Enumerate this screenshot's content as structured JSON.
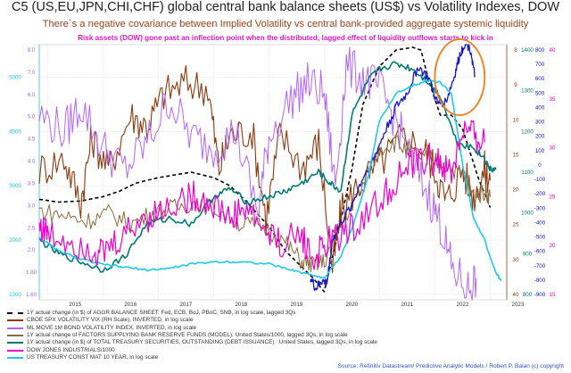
{
  "header": {
    "title": "C5 (US,EU,JPN,CHI,CHF) global central bank balance sheets (US$) vs Volatility Indexes, DOW",
    "subtitle": "There`s a negative  covariance between Implied Volatility vs central bank-provided aggregate systemic liquidity",
    "note": "Risk assets (DOW) gone past an inflection point when the distributed, lagged effect of liquidity outflows starts to kick in"
  },
  "footer": {
    "source": "Source: Refinitiv Datastream/ Predictive Analytic Models / Robert P. Balan (c) copyright"
  },
  "colors": {
    "balance_sheet": "#000000",
    "vix": "#8b3a0e",
    "move": "#b266ff",
    "reserve_factors": "#8b6a3e",
    "treasury": "#007b74",
    "dow": "#1414cc",
    "ust10": "#1ec8ee",
    "highlight_circle": "#f07d1a",
    "magenta": "#ee00cc"
  },
  "chart_data": {
    "type": "line",
    "title": "C5 (US,EU,JPN,CHI,CHF) global central bank balance sheets (US$) vs Volatility Indexes, DOW",
    "x_ticks": [
      "2015",
      "2016",
      "2017",
      "2018",
      "2019",
      "2020",
      "2021",
      "2022",
      "2023"
    ],
    "xlim": [
      2014.85,
      2023.3
    ],
    "axes": {
      "left_cyan": {
        "ticks": [
          "1000",
          "2000",
          "3000",
          "4000",
          "5000"
        ],
        "ylim": [
          900,
          5600
        ]
      },
      "left_violet": {
        "ticks": [
          "1.60",
          "1.80",
          "2.0",
          "2.5",
          "3.0",
          "3.5",
          "4.0",
          "4.5",
          "5.0",
          "6.0",
          "7.0",
          "8.0"
        ],
        "log": true
      },
      "right_brown": {
        "ticks": [
          "40",
          "30",
          "25",
          "20",
          "15",
          "10",
          "9",
          "8"
        ],
        "inverted": true,
        "log": true
      },
      "right_teal": {
        "ticks": [
          "800",
          "900",
          "1000",
          "1100",
          "1200",
          "1300",
          "1400"
        ]
      },
      "right_blue": {
        "ticks": [
          "-900",
          "-800",
          "-700",
          "-600",
          "-500",
          "-400",
          "-300",
          "-200",
          "-100",
          "0",
          "100",
          "200",
          "300",
          "400",
          "500",
          "600",
          "700",
          "800"
        ]
      },
      "right_magenta": {
        "ticks": [
          "15",
          "20",
          "25",
          "30",
          "35",
          "40"
        ]
      }
    },
    "series": [
      {
        "name": "1Y actual change (in $) of AGGR BALANCE SHEET: Fed, ECB, BoJ, PBoC, SNB,  in log scale, lagged 3Qs",
        "style": "dashed",
        "x": [
          2014.85,
          2015.2,
          2015.6,
          2016.0,
          2016.3,
          2016.6,
          2017.0,
          2017.3,
          2017.6,
          2018.0,
          2018.3,
          2018.6,
          2019.0,
          2019.3,
          2019.6,
          2019.8,
          2020.0,
          2020.2,
          2020.5,
          2020.7,
          2021.0,
          2021.3,
          2021.6,
          2021.75,
          2021.9,
          2022.1,
          2022.3,
          2022.5,
          2022.8,
          2023.0
        ],
        "y": [
          2750,
          2700,
          2720,
          2800,
          2900,
          3050,
          3150,
          3200,
          3250,
          3150,
          3000,
          2700,
          2250,
          1800,
          1500,
          1300,
          1050,
          1900,
          3300,
          4500,
          5200,
          5500,
          5550,
          5500,
          4900,
          4300,
          4300,
          4050,
          3100,
          2600
        ]
      },
      {
        "name": "CBOE SPX VOLATILITY VIX (RH Scale), INVERTED, in log scale",
        "x": [
          2014.85,
          2015.3,
          2015.6,
          2015.8,
          2016.1,
          2016.5,
          2016.8,
          2017.1,
          2017.5,
          2017.9,
          2018.1,
          2018.3,
          2018.7,
          2018.95,
          2019.2,
          2019.6,
          2019.9,
          2020.15,
          2020.3,
          2020.6,
          2021.0,
          2021.4,
          2021.8,
          2022.0,
          2022.2,
          2022.5,
          2022.7,
          2022.9,
          2023.0
        ],
        "y": [
          3300,
          3500,
          2700,
          3900,
          3300,
          4300,
          4100,
          4700,
          4900,
          4800,
          3300,
          3950,
          4000,
          2400,
          3950,
          3350,
          3800,
          1500,
          2500,
          3000,
          3400,
          3900,
          3700,
          3300,
          2700,
          3300,
          2800,
          3300,
          3100
        ]
      },
      {
        "name": "ML MOVE 1M BOND VOLATILITY INDEX, INVERTED, in log scale",
        "x": [
          2014.85,
          2015.3,
          2015.6,
          2016.0,
          2016.4,
          2016.8,
          2017.2,
          2017.6,
          2018.0,
          2018.4,
          2018.8,
          2019.0,
          2019.4,
          2019.7,
          2020.0,
          2020.2,
          2020.4,
          2020.7,
          2021.0,
          2021.3,
          2021.6,
          2021.9,
          2022.1,
          2022.3,
          2022.6,
          2022.75
        ],
        "y": [
          4300,
          4000,
          4500,
          3700,
          3300,
          3800,
          4600,
          3900,
          3700,
          4000,
          2500,
          3900,
          4600,
          4900,
          4700,
          3000,
          5200,
          5000,
          4800,
          4200,
          3400,
          2800,
          2300,
          1500,
          1100,
          1300
        ]
      },
      {
        "name": "1Y actual change of FACTORS SUPPLYING BANK RESERVE FUNDS (MODEL): United States/1000, lagged 3Qs, in log scale",
        "x": [
          2014.85,
          2015.3,
          2015.7,
          2016.1,
          2016.5,
          2016.9,
          2017.3,
          2017.7,
          2018.1,
          2018.5,
          2018.9,
          2019.3,
          2019.6,
          2019.8,
          2020.0,
          2020.3,
          2020.7,
          2021.0,
          2021.3,
          2021.6,
          2021.9,
          2022.2,
          2022.5,
          2022.7,
          2022.9,
          2023.0
        ],
        "y": [
          2550,
          2450,
          2350,
          2500,
          2300,
          2500,
          2600,
          2700,
          2550,
          2300,
          2250,
          1950,
          1600,
          1550,
          1600,
          2300,
          3000,
          3700,
          3800,
          3600,
          3500,
          3400,
          3200,
          2800,
          2900,
          2800
        ]
      },
      {
        "name": "1Y actual change (in $) of TOTAL TREASURY SECURITIES, OUTSTANDING (DEBT ISSUANCE) : United States, lagged 3Qs, in log scale",
        "x": [
          2014.85,
          2015.2,
          2015.6,
          2016.0,
          2016.4,
          2016.8,
          2017.2,
          2017.6,
          2018.0,
          2018.3,
          2018.6,
          2019.0,
          2019.3,
          2019.6,
          2019.9,
          2020.1,
          2020.3,
          2020.5,
          2020.8,
          2021.0,
          2021.3,
          2021.6,
          2021.9,
          2022.1,
          2022.4,
          2022.7,
          2022.9,
          2023.0,
          2023.1
        ],
        "y": [
          2000,
          1750,
          1600,
          1450,
          1700,
          2300,
          2400,
          2300,
          2800,
          2950,
          2700,
          2800,
          2900,
          3050,
          3250,
          3050,
          2900,
          4300,
          4950,
          5150,
          5250,
          5150,
          4900,
          4650,
          3800,
          3700,
          3500,
          3300,
          3300
        ]
      },
      {
        "name": "DOW JONES INDUSTRIALS/1000",
        "x": [
          2019.75,
          2019.85,
          2019.95,
          2020.05,
          2020.15,
          2020.3,
          2020.5,
          2020.7,
          2020.9,
          2021.1,
          2021.3,
          2021.5,
          2021.7,
          2021.9,
          2022.05,
          2022.2,
          2022.35,
          2022.45,
          2022.55,
          2022.65,
          2022.72
        ],
        "y": [
          1300,
          1100,
          1250,
          1200,
          2000,
          2300,
          2650,
          3150,
          3500,
          4000,
          4450,
          4700,
          5200,
          4950,
          4500,
          4550,
          5000,
          5400,
          5650,
          5500,
          5000
        ]
      },
      {
        "name": "US TREASURY CONST MAT 10 YEAR, in log scale",
        "x": [
          2014.85,
          2015.2,
          2015.6,
          2016.0,
          2016.4,
          2016.8,
          2017.2,
          2017.6,
          2018.0,
          2018.5,
          2019.0,
          2019.4,
          2019.7,
          2020.0,
          2020.3,
          2020.5,
          2020.8,
          2021.0,
          2021.3,
          2021.6,
          2021.9,
          2022.1,
          2022.3,
          2022.5,
          2022.7,
          2022.9,
          2023.1,
          2023.2
        ],
        "y": [
          2050,
          1800,
          1650,
          1550,
          1500,
          1450,
          1480,
          1560,
          1600,
          1600,
          1560,
          1450,
          1380,
          1300,
          1700,
          2200,
          3200,
          4200,
          4700,
          4850,
          4950,
          4900,
          4700,
          3400,
          2400,
          2000,
          1400,
          1250
        ]
      },
      {
        "name": "",
        "x": [
          2014.85,
          2015.0,
          2015.4,
          2015.8,
          2016.0,
          2016.3,
          2016.7,
          2017.0,
          2017.4,
          2017.7,
          2018.0,
          2018.3,
          2018.6,
          2018.9,
          2019.2,
          2019.6,
          2019.8,
          2020.0,
          2020.3,
          2020.6,
          2021.0,
          2021.3,
          2021.6,
          2021.9,
          2022.1,
          2022.3,
          2022.5,
          2022.7,
          2022.9
        ],
        "y": [
          2300,
          2100,
          2000,
          1850,
          1750,
          2000,
          2400,
          2500,
          2750,
          2800,
          2650,
          2400,
          2600,
          2200,
          1950,
          2100,
          1600,
          1900,
          2100,
          2300,
          2700,
          3100,
          3400,
          3500,
          3400,
          3200,
          4000,
          3900,
          3800
        ]
      }
    ],
    "annotations": [
      {
        "type": "ellipse",
        "cx": 2022.45,
        "cy": 5000,
        "rx": 0.45,
        "ry": 700
      }
    ]
  },
  "legend": {
    "entries": [
      {
        "label": "1Y actual change (in $) of AGGR BALANCE SHEET: Fed, ECB, BoJ, PBoC, SNB,  in log scale, lagged 3Qs",
        "color": "#000000",
        "dashed": true
      },
      {
        "label": "CBOE SPX VOLATILITY VIX (RH Scale), INVERTED, in log scale",
        "color": "#8b3a0e",
        "dashed": false
      },
      {
        "label": "ML MOVE 1M BOND VOLATILITY INDEX, INVERTED, in log scale",
        "color": "#b266ff",
        "dashed": false
      },
      {
        "label": "1Y actual change of FACTORS SUPPLYING BANK RESERVE FUNDS (MODEL): United States/1000, lagged 3Qs, in log scale",
        "color": "#8b6a3e",
        "dashed": false
      },
      {
        "label": "1Y actual change (in $) of TOTAL TREASURY SECURITIES, OUTSTANDING (DEBT ISSUANCE) : United States, lagged 3Qs, in log scale",
        "color": "#007b74",
        "dashed": false
      },
      {
        "label": "DOW JONES INDUSTRIALS/1000",
        "color": "#ee00cc",
        "dashed": false
      },
      {
        "label": "US TREASURY CONST MAT 10 YEAR, in log scale",
        "color": "#1ec8ee",
        "dashed": false
      }
    ]
  }
}
